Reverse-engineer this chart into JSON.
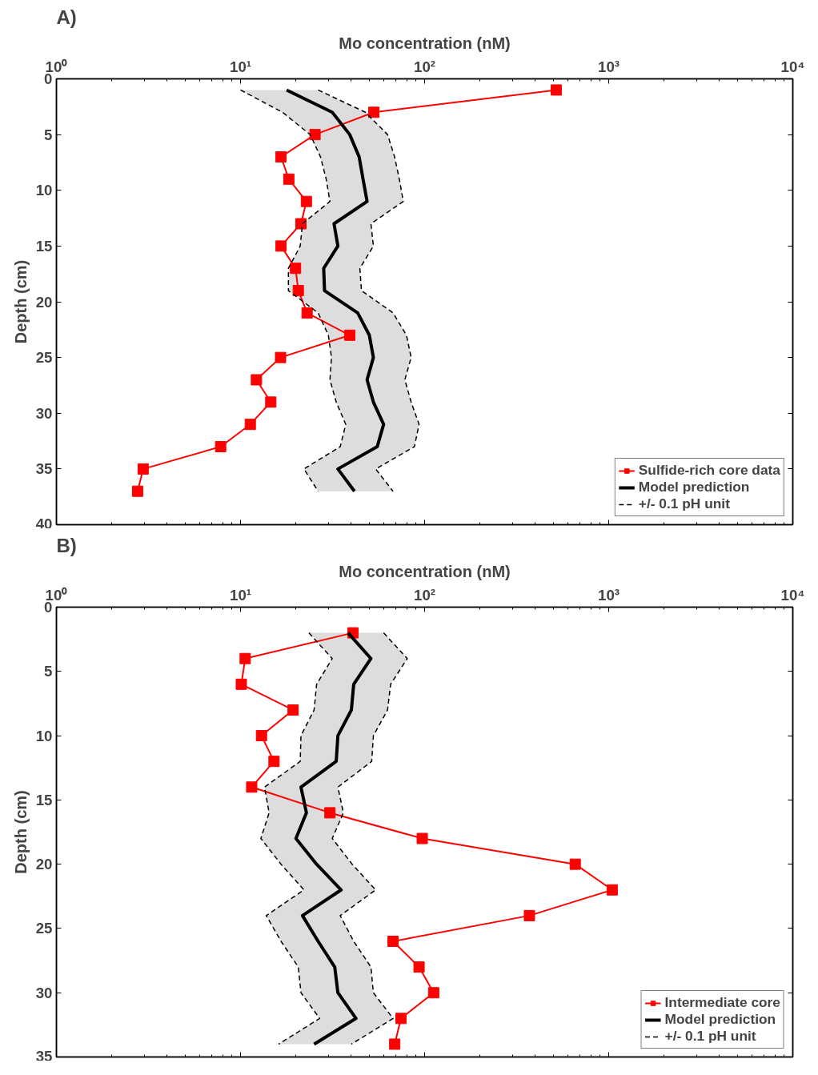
{
  "chart_data": [
    {
      "type": "line",
      "title": "A)",
      "xlabel": "Mo concentration (nM)",
      "ylabel": "Depth (cm)",
      "log": "x",
      "xlim": [
        1,
        10000
      ],
      "xticks": [
        {
          "value": 1,
          "label": "10⁰"
        },
        {
          "value": 10,
          "label": "10¹"
        },
        {
          "value": 100,
          "label": "10²"
        },
        {
          "value": 1000,
          "label": "10³"
        },
        {
          "value": 10000,
          "label": "10⁴"
        }
      ],
      "ylim": [
        40,
        0
      ],
      "yticks": [
        0,
        5,
        10,
        15,
        20,
        25,
        30,
        35,
        40
      ],
      "grid": false,
      "legend": "bottom right",
      "orientation": "horizontal",
      "series": [
        {
          "name": "Sulfide-rich core data",
          "color": "#ff0000",
          "marker": "square",
          "line_style": "solid",
          "x": [
            1,
            3,
            5,
            7,
            9,
            11,
            13,
            15,
            17,
            19,
            21,
            23,
            25,
            27,
            29,
            31,
            33,
            35,
            37
          ],
          "values": [
            519,
            53,
            25.4,
            16.6,
            18.3,
            22.8,
            21.3,
            16.6,
            19.9,
            20.6,
            23,
            39.2,
            16.5,
            12.2,
            14.6,
            11.3,
            7.8,
            2.96,
            2.76
          ]
        },
        {
          "name": "Model prediction",
          "color": "#000000",
          "marker": "none",
          "line_style": "solid",
          "x": [
            1,
            3,
            5,
            7,
            9,
            11,
            13,
            15,
            17,
            19,
            21,
            23,
            25,
            27,
            29,
            31,
            33,
            35,
            37
          ],
          "values": [
            17.8,
            31.5,
            39.2,
            44.1,
            46.3,
            48.7,
            32.2,
            33.8,
            28.3,
            28.6,
            43.3,
            50.1,
            52.7,
            48.7,
            52.7,
            59.9,
            55.3,
            33.8,
            41.6
          ],
          "lower": [
            10.0,
            16.9,
            23.9,
            27.2,
            29.2,
            30.6,
            21.7,
            21.1,
            18.2,
            18.2,
            26.4,
            30.0,
            31.2,
            30.6,
            33.1,
            37.3,
            34.8,
            22.1,
            26.4
          ],
          "upper": [
            26.4,
            47.7,
            62.9,
            68.7,
            72.9,
            76.6,
            51.1,
            52.7,
            44.5,
            45.4,
            67.4,
            79.7,
            84.5,
            78.1,
            84.5,
            93.3,
            88.0,
            54.2,
            67.4
          ]
        },
        {
          "name": "+/- 0.1 pH unit",
          "color": "#000000",
          "marker": "none",
          "line_style": "dashed",
          "x": [
            1,
            3,
            5,
            7,
            9,
            11,
            13,
            15,
            17,
            19,
            21,
            23,
            25,
            27,
            29,
            31,
            33,
            35,
            37
          ],
          "values": [
            10.0,
            16.9,
            23.9,
            27.2,
            29.2,
            30.6,
            21.7,
            21.1,
            18.2,
            18.2,
            26.4,
            30.0,
            31.2,
            30.6,
            33.1,
            37.3,
            34.8,
            22.1,
            26.4
          ]
        },
        {
          "color": "#000000",
          "marker": "none",
          "line_style": "dashed",
          "x": [
            1,
            3,
            5,
            7,
            9,
            11,
            13,
            15,
            17,
            19,
            21,
            23,
            25,
            27,
            29,
            31,
            33,
            35,
            37
          ],
          "values": [
            26.4,
            47.7,
            62.9,
            68.7,
            72.9,
            76.6,
            51.1,
            52.7,
            44.5,
            45.4,
            67.4,
            79.7,
            84.5,
            78.1,
            84.5,
            93.3,
            88.0,
            54.2,
            67.4
          ]
        }
      ]
    },
    {
      "type": "line",
      "title": "B)",
      "xlabel": "Mo concentration (nM)",
      "ylabel": "Depth (cm)",
      "log": "x",
      "xlim": [
        1,
        10000
      ],
      "xticks": [
        {
          "value": 1,
          "label": "10⁰"
        },
        {
          "value": 10,
          "label": "10¹"
        },
        {
          "value": 100,
          "label": "10²"
        },
        {
          "value": 1000,
          "label": "10³"
        },
        {
          "value": 10000,
          "label": "10⁴"
        }
      ],
      "ylim": [
        35,
        0
      ],
      "yticks": [
        0,
        5,
        10,
        15,
        20,
        25,
        30,
        35
      ],
      "grid": false,
      "legend": "bottom right",
      "orientation": "horizontal",
      "series": [
        {
          "name": "Intermediate core",
          "color": "#ff0000",
          "marker": "square",
          "line_style": "solid",
          "x": [
            2,
            4,
            6,
            8,
            10,
            12,
            14,
            16,
            18,
            20,
            22,
            24,
            26,
            28,
            30,
            32,
            34
          ],
          "values": [
            40.8,
            10.6,
            10.1,
            19.3,
            13.0,
            15.2,
            11.5,
            30.6,
            97.1,
            658,
            1045,
            371,
            67.4,
            93.3,
            112,
            74.4,
            68.8
          ]
        },
        {
          "name": "Model prediction",
          "color": "#000000",
          "marker": "none",
          "line_style": "solid",
          "x": [
            2,
            4,
            6,
            8,
            10,
            12,
            14,
            16,
            18,
            20,
            22,
            24,
            26,
            28,
            30,
            32,
            34
          ],
          "values": [
            38.4,
            51.1,
            41.2,
            40.0,
            33.8,
            33.1,
            21.3,
            22.8,
            20.0,
            25.9,
            35.2,
            21.7,
            26.4,
            32.5,
            33.8,
            42.4,
            25.1
          ],
          "lower": [
            23.5,
            31.5,
            25.9,
            25.1,
            21.3,
            21.1,
            13.5,
            14.3,
            12.9,
            16.6,
            22.1,
            13.8,
            16.6,
            20.6,
            21.3,
            26.9,
            16.1
          ],
          "upper": [
            59.9,
            80.5,
            65.4,
            62.9,
            52.7,
            51.6,
            33.8,
            36.2,
            31.5,
            40.4,
            54.2,
            34.8,
            41.2,
            51.1,
            52.7,
            67.4,
            40.0
          ]
        },
        {
          "name": "+/- 0.1 pH unit",
          "color": "#000000",
          "marker": "none",
          "line_style": "dashed",
          "x": [
            2,
            4,
            6,
            8,
            10,
            12,
            14,
            16,
            18,
            20,
            22,
            24,
            26,
            28,
            30,
            32,
            34
          ],
          "values": [
            23.5,
            31.5,
            25.9,
            25.1,
            21.3,
            21.1,
            13.5,
            14.3,
            12.9,
            16.6,
            22.1,
            13.8,
            16.6,
            20.6,
            21.3,
            26.9,
            16.1
          ]
        },
        {
          "color": "#000000",
          "marker": "none",
          "line_style": "dashed",
          "x": [
            2,
            4,
            6,
            8,
            10,
            12,
            14,
            16,
            18,
            20,
            22,
            24,
            26,
            28,
            30,
            32,
            34
          ],
          "values": [
            59.9,
            80.5,
            65.4,
            62.9,
            52.7,
            51.6,
            33.8,
            36.2,
            31.5,
            40.4,
            54.2,
            34.8,
            41.2,
            51.1,
            52.7,
            67.4,
            40.0
          ]
        }
      ]
    }
  ]
}
